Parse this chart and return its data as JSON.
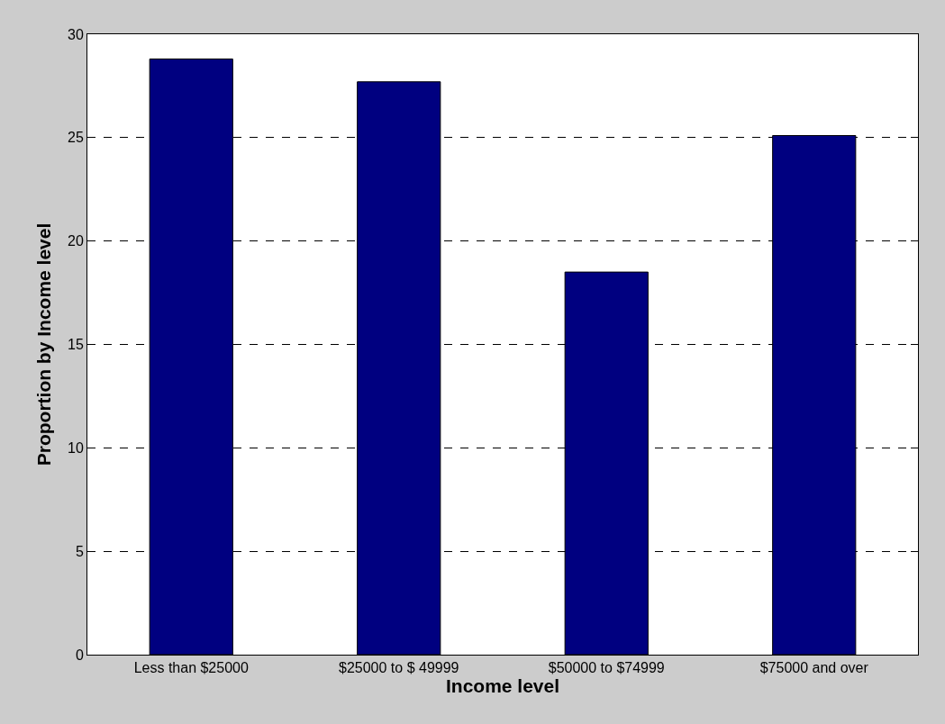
{
  "chart_data": {
    "type": "bar",
    "xlabel": "Income level",
    "ylabel": "Proportion by Income level",
    "categories": [
      "Less than $25000",
      "$25000 to $ 49999",
      "$50000 to $74999",
      "$75000 and over"
    ],
    "values": [
      28.8,
      27.7,
      18.5,
      25.1
    ],
    "color": "#000080",
    "ylim": [
      0,
      30
    ],
    "yticks": [
      0,
      5,
      10,
      15,
      20,
      25,
      30
    ],
    "grid": "y"
  }
}
